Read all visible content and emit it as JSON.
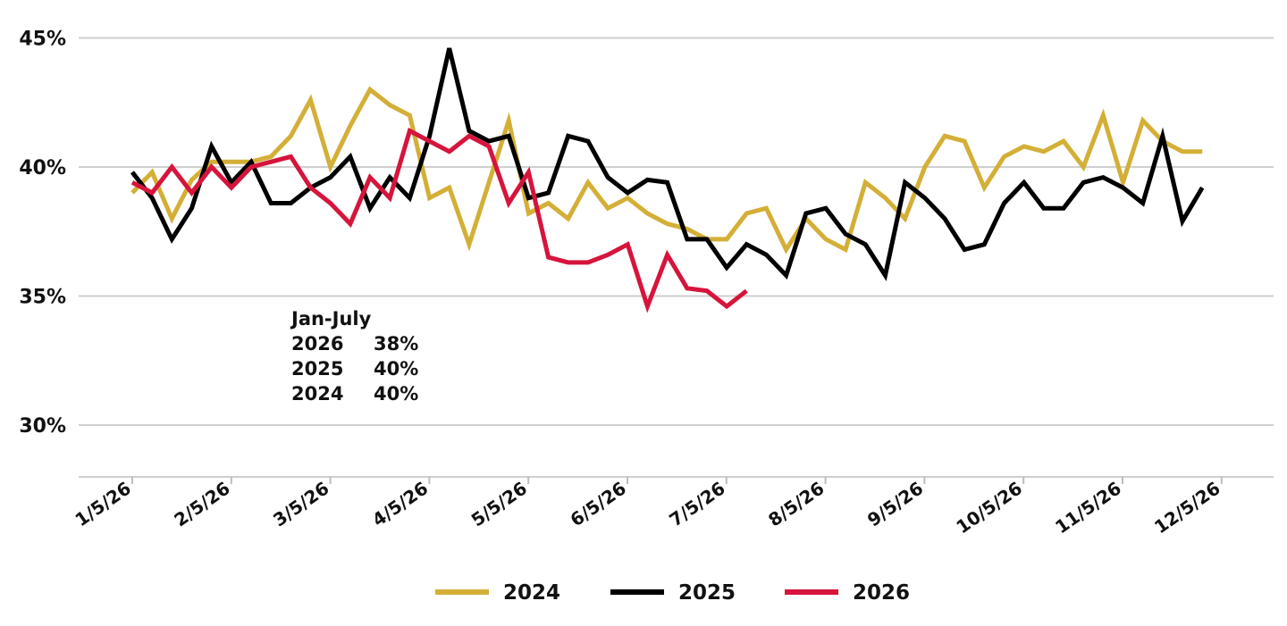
{
  "chart_data": {
    "type": "line",
    "title": "",
    "xlabel": "",
    "ylabel": "",
    "ylim": [
      28,
      45.5
    ],
    "y_ticks": [
      "30%",
      "35%",
      "40%",
      "45%"
    ],
    "y_tick_values": [
      30,
      35,
      40,
      45
    ],
    "x_ticks": [
      "1/5/26",
      "2/5/26",
      "3/5/26",
      "4/5/26",
      "5/5/26",
      "6/5/26",
      "7/5/26",
      "8/5/26",
      "9/5/26",
      "10/5/26",
      "11/5/26",
      "12/5/26"
    ],
    "grid": "horizontal",
    "legend_position": "bottom",
    "annotation": {
      "heading": "Jan-July",
      "rows": [
        {
          "year": "2026",
          "value": "38%"
        },
        {
          "year": "2025",
          "value": "40%"
        },
        {
          "year": "2024",
          "value": "40%"
        }
      ]
    },
    "series": [
      {
        "name": "2024",
        "color": "#D4AF37",
        "values": [
          39.0,
          39.8,
          38.0,
          39.5,
          40.2,
          40.2,
          40.2,
          40.4,
          41.2,
          42.6,
          40.0,
          41.6,
          43.0,
          42.4,
          42.0,
          38.8,
          39.2,
          37.0,
          39.4,
          41.8,
          38.2,
          38.6,
          38.0,
          39.4,
          38.4,
          38.8,
          38.2,
          37.8,
          37.6,
          37.2,
          37.2,
          38.2,
          38.4,
          36.8,
          38.0,
          37.2,
          36.8,
          39.4,
          38.8,
          38.0,
          40.0,
          41.2,
          41.0,
          39.2,
          40.4,
          40.8,
          40.6,
          41.0,
          40.0,
          42.0,
          39.4,
          41.8,
          41.0,
          40.6,
          40.6
        ]
      },
      {
        "name": "2025",
        "color": "#000000",
        "values": [
          39.8,
          38.8,
          37.2,
          38.4,
          40.8,
          39.4,
          40.2,
          38.6,
          38.6,
          39.2,
          39.6,
          40.4,
          38.4,
          39.6,
          38.8,
          41.2,
          44.6,
          41.4,
          41.0,
          41.2,
          38.8,
          39.0,
          41.2,
          41.0,
          39.6,
          39.0,
          39.5,
          39.4,
          37.2,
          37.2,
          36.1,
          37.0,
          36.6,
          35.8,
          38.2,
          38.4,
          37.4,
          37.0,
          35.8,
          39.4,
          38.8,
          38.0,
          36.8,
          37.0,
          38.6,
          39.4,
          38.4,
          38.4,
          39.4,
          39.6,
          39.2,
          38.6,
          41.2,
          37.9,
          39.2
        ]
      },
      {
        "name": "2026",
        "color": "#D6143C",
        "values": [
          39.4,
          39.0,
          40.0,
          39.0,
          40.0,
          39.2,
          40.0,
          40.2,
          40.4,
          39.2,
          38.6,
          37.8,
          39.6,
          38.8,
          41.4,
          41.0,
          40.6,
          41.2,
          40.8,
          38.6,
          39.8,
          36.5,
          36.3,
          36.3,
          36.6,
          37.0,
          34.6,
          36.6,
          35.3,
          35.2,
          34.6,
          35.2
        ]
      }
    ]
  }
}
